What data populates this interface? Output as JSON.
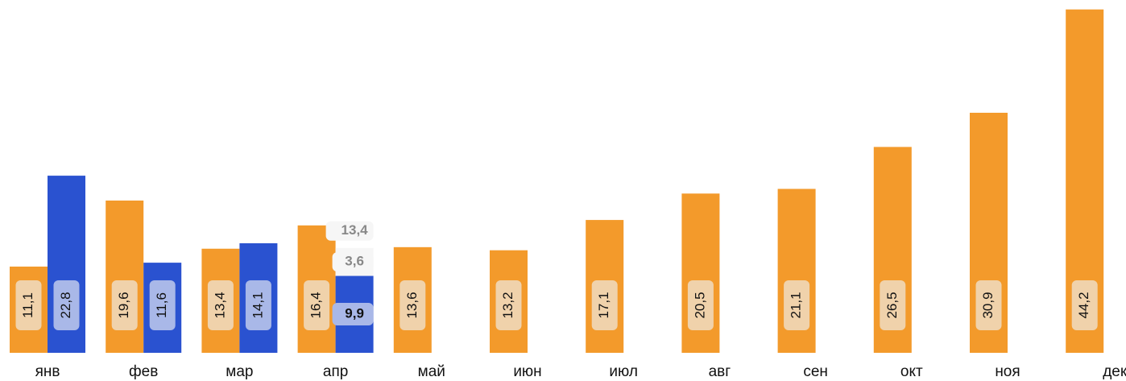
{
  "chart_data": {
    "type": "bar",
    "categories": [
      "янв",
      "фев",
      "мар",
      "апр",
      "май",
      "июн",
      "июл",
      "авг",
      "сен",
      "окт",
      "ноя",
      "дек"
    ],
    "series": [
      {
        "color": "#f39a2b",
        "label_bg": "#f0d2ab",
        "values": [
          11.1,
          19.6,
          13.4,
          16.4,
          13.6,
          13.2,
          17.1,
          20.5,
          21.1,
          26.5,
          30.9,
          44.2
        ],
        "value_labels": [
          "11,1",
          "19,6",
          "13,4",
          "16,4",
          "13,6",
          "13,2",
          "17,1",
          "20,5",
          "21,1",
          "26,5",
          "30,9",
          "44,2"
        ]
      },
      {
        "color": "#2a52d0",
        "label_bg": "#a9b8e8",
        "values": [
          22.8,
          11.6,
          14.1,
          9.9,
          null,
          null,
          null,
          null,
          null,
          null,
          null,
          null
        ],
        "value_labels": [
          "22,8",
          "11,6",
          "14,1",
          "9,9",
          null,
          null,
          null,
          null,
          null,
          null,
          null,
          null
        ]
      },
      {
        "color": "#f6f6f6",
        "label_bg": "#f6f6f6",
        "stack_on": 1,
        "values": [
          null,
          null,
          null,
          3.6,
          null,
          null,
          null,
          null,
          null,
          null,
          null,
          null
        ],
        "value_labels": [
          null,
          null,
          null,
          "3,6",
          null,
          null,
          null,
          null,
          null,
          null,
          null,
          null
        ]
      }
    ],
    "totals": {
      "values": [
        null,
        null,
        null,
        13.4,
        null,
        null,
        null,
        null,
        null,
        null,
        null,
        null
      ],
      "value_labels": [
        null,
        null,
        null,
        "13,4",
        null,
        null,
        null,
        null,
        null,
        null,
        null,
        null
      ]
    },
    "ylim": [
      0,
      45
    ]
  }
}
